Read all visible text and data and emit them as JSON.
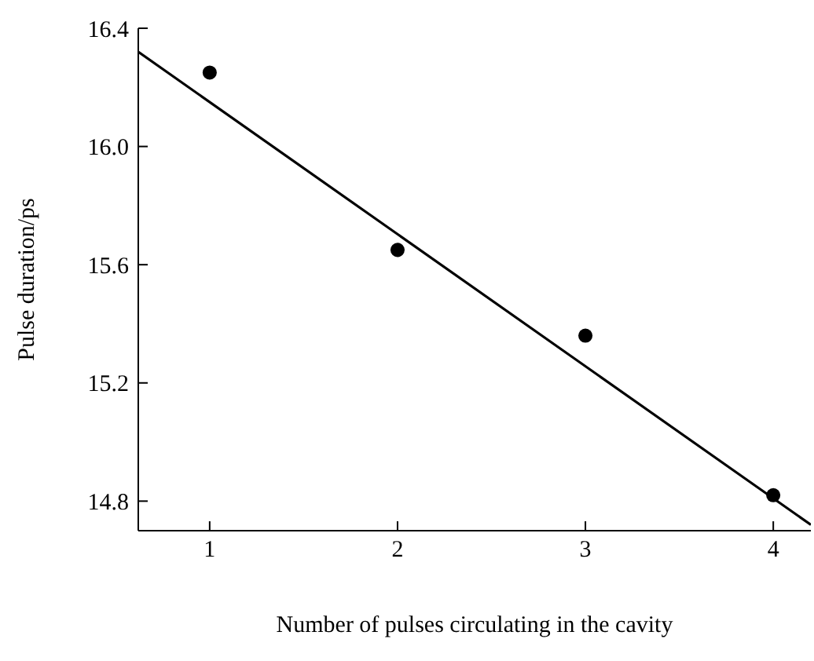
{
  "chart_data": {
    "type": "scatter",
    "xlabel": "Number of pulses circulating in the cavity",
    "ylabel": "Pulse duration/ps",
    "xlim": [
      0.62,
      4.2
    ],
    "xticks": [
      1,
      2,
      3,
      4
    ],
    "ylim": [
      14.7,
      16.4
    ],
    "yticks": [
      {
        "value": 14.8,
        "label": "14.8"
      },
      {
        "value": 15.2,
        "label": "15.2"
      },
      {
        "value": 15.6,
        "label": "15.6"
      },
      {
        "value": 16,
        "label": "16.0"
      },
      {
        "value": 16.4,
        "label": "16.4"
      }
    ],
    "grid": false,
    "series": [
      {
        "color": "#000000",
        "marker": "circle",
        "x": [
          1,
          2,
          3,
          4
        ],
        "values": [
          16.25,
          15.65,
          15.36,
          14.82
        ]
      },
      {
        "type": "line",
        "color": "#000000",
        "marker": "none",
        "line_style": "solid",
        "x": [
          0.62,
          4.2
        ],
        "values": [
          16.32,
          14.72
        ]
      }
    ]
  }
}
